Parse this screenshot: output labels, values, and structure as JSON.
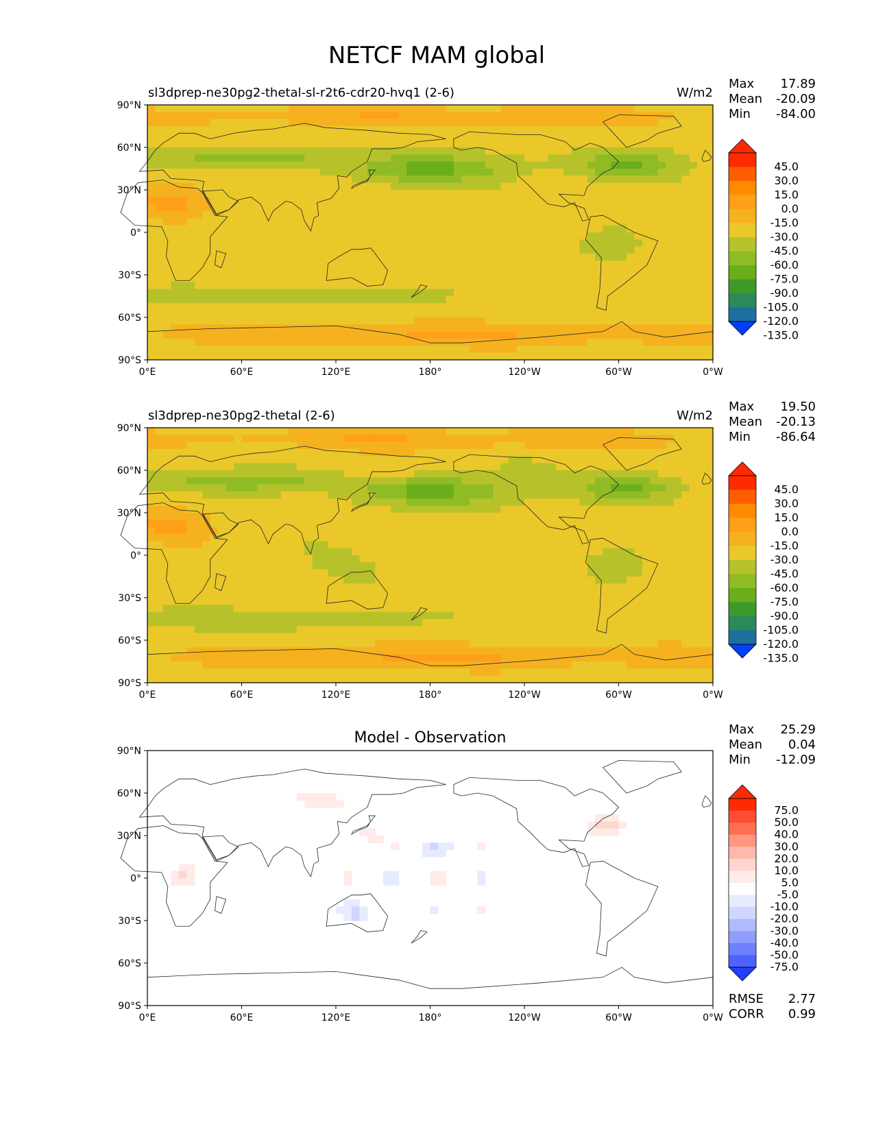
{
  "figure_title": "NETCF MAM global",
  "colors": {
    "c_pos45": "#ff2a00",
    "c_30": "#ff5e00",
    "c_15": "#ff8c00",
    "c_0": "#ff9f1a",
    "c_m15": "#f5b21e",
    "c_m30": "#eac82a",
    "c_m45": "#b7c22a",
    "c_m60": "#8fbc25",
    "c_m75": "#6aae1c",
    "c_m90": "#3d9a2a",
    "c_m105": "#2a8a5a",
    "c_m120": "#1d6fa0",
    "c_m135": "#0a55d6",
    "c_min": "#0040ff",
    "diff_pos": [
      "#ff2a00",
      "#ff4d33",
      "#ff7052",
      "#ff9680",
      "#ffb8ab",
      "#ffd6cf",
      "#ffebe7"
    ],
    "diff_neg": [
      "#e8ebff",
      "#d0d6ff",
      "#b0bbff",
      "#8f9dff",
      "#6f80ff",
      "#4d62ff",
      "#2040ff"
    ]
  },
  "chart_data": [
    {
      "type": "heatmap",
      "title": "sl3dprep-ne30pg2-thetal-sl-r2t6-cdr20-hvq1 (2-6)",
      "units": "W/m2",
      "stats": [
        {
          "label": "Max",
          "value": "17.89"
        },
        {
          "label": "Mean",
          "value": "-20.09"
        },
        {
          "label": "Min",
          "value": "-84.00"
        }
      ],
      "colorbar_levels": [
        "45.0",
        "30.0",
        "15.0",
        "0.0",
        "-15.0",
        "-30.0",
        "-45.0",
        "-60.0",
        "-75.0",
        "-90.0",
        "-105.0",
        "-120.0",
        "-135.0"
      ],
      "x_ticks": [
        "0°E",
        "60°E",
        "120°E",
        "180°",
        "120°W",
        "60°W",
        "0°W"
      ],
      "y_ticks": [
        "90°N",
        "60°N",
        "30°N",
        "0°",
        "30°S",
        "60°S",
        "90°S"
      ],
      "xlim": [
        0,
        360
      ],
      "ylim": [
        -90,
        90
      ]
    },
    {
      "type": "heatmap",
      "title": "sl3dprep-ne30pg2-thetal (2-6)",
      "units": "W/m2",
      "stats": [
        {
          "label": "Max",
          "value": "19.50"
        },
        {
          "label": "Mean",
          "value": "-20.13"
        },
        {
          "label": "Min",
          "value": "-86.64"
        }
      ],
      "colorbar_levels": [
        "45.0",
        "30.0",
        "15.0",
        "0.0",
        "-15.0",
        "-30.0",
        "-45.0",
        "-60.0",
        "-75.0",
        "-90.0",
        "-105.0",
        "-120.0",
        "-135.0"
      ],
      "x_ticks": [
        "0°E",
        "60°E",
        "120°E",
        "180°",
        "120°W",
        "60°W",
        "0°W"
      ],
      "y_ticks": [
        "90°N",
        "60°N",
        "30°N",
        "0°",
        "30°S",
        "60°S",
        "90°S"
      ],
      "xlim": [
        0,
        360
      ],
      "ylim": [
        -90,
        90
      ]
    },
    {
      "type": "heatmap",
      "title": "Model - Observation",
      "units": "",
      "stats": [
        {
          "label": "Max",
          "value": "25.29"
        },
        {
          "label": "Mean",
          "value": "0.04"
        },
        {
          "label": "Min",
          "value": "-12.09"
        }
      ],
      "colorbar_levels": [
        "75.0",
        "50.0",
        "40.0",
        "30.0",
        "20.0",
        "10.0",
        "5.0",
        "-5.0",
        "-10.0",
        "-20.0",
        "-30.0",
        "-40.0",
        "-50.0",
        "-75.0"
      ],
      "x_ticks": [
        "0°E",
        "60°E",
        "120°E",
        "180°",
        "120°W",
        "60°W",
        "0°W"
      ],
      "y_ticks": [
        "90°N",
        "60°N",
        "30°N",
        "0°",
        "30°S",
        "60°S",
        "90°S"
      ],
      "xlim": [
        0,
        360
      ],
      "ylim": [
        -90,
        90
      ],
      "metrics": [
        {
          "label": "RMSE",
          "value": "2.77"
        },
        {
          "label": "CORR",
          "value": "0.99"
        }
      ]
    }
  ]
}
